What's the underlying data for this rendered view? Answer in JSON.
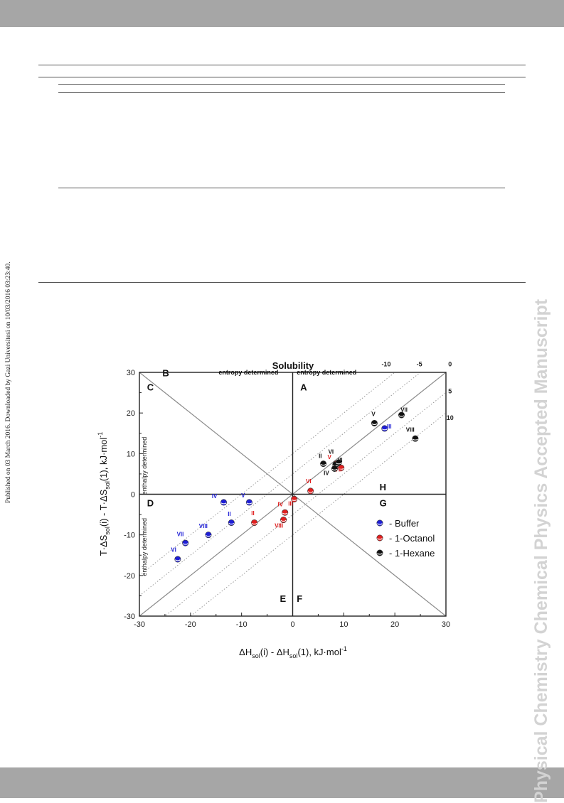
{
  "page": {
    "sidebar_text": "Physical Chemistry Chemical Physics Accepted Manuscript",
    "published_note": "Published on 03 March 2016. Downloaded by Gazi Universitesi on 10/03/2016 03:23:40."
  },
  "colors": {
    "band": "#a6a6a6",
    "buffer": "#1f1fd6",
    "octanol": "#e02020",
    "hexane": "#111111",
    "sidebar": "#d3d3d3"
  },
  "chart_data": {
    "type": "scatter",
    "title": "Solubility",
    "xlabel": {
      "pre": "ΔH",
      "s1": "sol",
      "m1": "(i) - ΔH",
      "s2": "sol",
      "m2": "(1), kJ·mol",
      "sup": "-1"
    },
    "ylabel": {
      "pre": "T·ΔS",
      "s1": "sol",
      "m1": "(i) - T·ΔS",
      "s2": "sol",
      "m2": "(1), kJ·mol",
      "sup": "-1"
    },
    "xlim": [
      -30,
      30
    ],
    "ylim": [
      -30,
      30
    ],
    "xticks": [
      -30,
      -20,
      -10,
      0,
      10,
      20,
      30
    ],
    "yticks": [
      -30,
      -20,
      -10,
      0,
      10,
      20,
      30
    ],
    "grid": false,
    "legend_position": "lower-right",
    "region_labels": [
      {
        "text": "A",
        "x": 1.5,
        "y": 25.5
      },
      {
        "text": "B",
        "x": -25.5,
        "y": 29
      },
      {
        "text": "C",
        "x": -28.5,
        "y": 25.5
      },
      {
        "text": "D",
        "x": -28.5,
        "y": -3
      },
      {
        "text": "E",
        "x": -2.5,
        "y": -26.5
      },
      {
        "text": "F",
        "x": 0.8,
        "y": -26.5
      },
      {
        "text": "G",
        "x": 17,
        "y": -3
      },
      {
        "text": "H",
        "x": 17,
        "y": 1
      }
    ],
    "region_annotations": [
      {
        "text": "entropy determined",
        "x": -14.5,
        "y": 29.5,
        "rotate": false
      },
      {
        "text": "entropy determined",
        "x": 0.8,
        "y": 29.5,
        "rotate": false
      },
      {
        "text": "enthalpy determined",
        "x": -28.6,
        "y": 7,
        "rotate": true
      },
      {
        "text": "enthalpy determined",
        "x": -28.6,
        "y": -13,
        "rotate": true
      }
    ],
    "reference_lines": [
      {
        "label": "-10",
        "offset": -10,
        "label_x": 18.3,
        "label_y": 31.5,
        "style": "dotted"
      },
      {
        "label": "-5",
        "offset": -5,
        "label_x": 24.8,
        "label_y": 31.5,
        "style": "dotted"
      },
      {
        "label": "0",
        "offset": 0,
        "label_x": 30.8,
        "label_y": 31.5,
        "style": "solid"
      },
      {
        "label": "5",
        "offset": 5,
        "label_x": 30.8,
        "label_y": 24.8,
        "style": "dotted"
      },
      {
        "label": "10",
        "offset": 10,
        "label_x": 30.8,
        "label_y": 18.3,
        "style": "dotted"
      }
    ],
    "series": [
      {
        "name": "- Buffer",
        "points": [
          {
            "x": 18,
            "y": 16.2,
            "label": "III",
            "lx": 18.9,
            "ly": 16.2
          },
          {
            "x": -13.5,
            "y": -2,
            "label": "IV",
            "lx": -15.3,
            "ly": -1
          },
          {
            "x": -8.5,
            "y": -2,
            "label": "V",
            "lx": -9.7,
            "ly": -0.8
          },
          {
            "x": -12,
            "y": -7,
            "label": "II",
            "lx": -12.4,
            "ly": -5.3
          },
          {
            "x": -21,
            "y": -12,
            "label": "VII",
            "lx": -22,
            "ly": -10.3
          },
          {
            "x": -16.5,
            "y": -10,
            "label": "VIII",
            "lx": -17.5,
            "ly": -8.3
          },
          {
            "x": -22.5,
            "y": -16,
            "label": "VI",
            "lx": -23.3,
            "ly": -14.2
          }
        ]
      },
      {
        "name": "- 1-Octanol",
        "points": [
          {
            "x": 3.5,
            "y": 0.8,
            "label": "VI",
            "lx": 3.1,
            "ly": 2.7
          },
          {
            "x": 9.5,
            "y": 6.5,
            "label": "VII",
            "lx": 8.9,
            "ly": 5.6
          },
          {
            "x": 8.5,
            "y": 7.5,
            "label": "V",
            "lx": 7.2,
            "ly": 8.7
          },
          {
            "x": 0.3,
            "y": -1.2,
            "label": "III",
            "lx": -0.4,
            "ly": -2.8
          },
          {
            "x": -7.5,
            "y": -7,
            "label": "II",
            "lx": -7.8,
            "ly": -5.2
          },
          {
            "x": -1.5,
            "y": -4.5,
            "label": "IV",
            "lx": -2.4,
            "ly": -3
          },
          {
            "x": -1.8,
            "y": -6.3,
            "label": "VIII",
            "lx": -2.7,
            "ly": -8.2
          }
        ]
      },
      {
        "name": "- 1-Hexane",
        "points": [
          {
            "x": 16,
            "y": 17.5,
            "label": "V",
            "lx": 15.8,
            "ly": 19.2
          },
          {
            "x": 21.3,
            "y": 19.5,
            "label": "VII",
            "lx": 21.8,
            "ly": 20.3
          },
          {
            "x": 24,
            "y": 13.7,
            "label": "VIII",
            "lx": 23,
            "ly": 15.4
          },
          {
            "x": 6,
            "y": 7.5,
            "label": "II",
            "lx": 5.4,
            "ly": 8.9
          },
          {
            "x": 8.4,
            "y": 7.3,
            "label": "VI",
            "lx": 7.5,
            "ly": 10
          },
          {
            "x": 9,
            "y": 7.8,
            "label": "III",
            "lx": 9.3,
            "ly": 8
          },
          {
            "x": 8.2,
            "y": 6.3,
            "label": "IV",
            "lx": 6.6,
            "ly": 4.7
          }
        ]
      }
    ]
  }
}
